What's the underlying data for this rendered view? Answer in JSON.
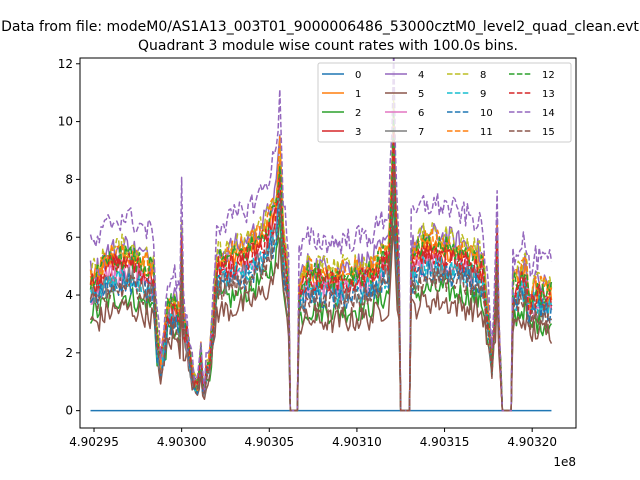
{
  "figure": {
    "suptitle": "Data from file: modeM0/AS1A13_003T01_9000006486_53000cztM0_level2_quad_clean.evt",
    "title": "Quadrant 3 module wise count rates with 100.0s bins.",
    "offset_label": "1e8"
  },
  "chart_data": {
    "type": "line",
    "title": "Quadrant 3 module wise count rates with 100.0s bins.",
    "xlabel": "",
    "ylabel": "",
    "x_scale_note": "x tick values multiplied by 1e8",
    "xlim": [
      490294200,
      490322500
    ],
    "ylim": [
      -0.6,
      12.2
    ],
    "x_start": 490294800,
    "x_end": 490321100,
    "bin_seconds": 100,
    "xticks": [
      490295000,
      490300000,
      490305000,
      490310000,
      490315000,
      490320000
    ],
    "xtick_labels": [
      "4.90295",
      "4.90300",
      "4.90305",
      "4.90310",
      "4.90315",
      "4.90320"
    ],
    "yticks": [
      0,
      2,
      4,
      6,
      8,
      10,
      12
    ],
    "ytick_labels": [
      "0",
      "2",
      "4",
      "6",
      "8",
      "10",
      "12"
    ],
    "grid": false,
    "legend_location": "upper right",
    "legend_columns": 4,
    "envelope_profile": [
      [
        0,
        4.3
      ],
      [
        4,
        4.4
      ],
      [
        10,
        4.9
      ],
      [
        20,
        5.1
      ],
      [
        30,
        4.8
      ],
      [
        36,
        4.6
      ],
      [
        38,
        2.4
      ],
      [
        40,
        1.6
      ],
      [
        42,
        2.3
      ],
      [
        44,
        3.3
      ],
      [
        48,
        3.6
      ],
      [
        51,
        2.9
      ],
      [
        52,
        5.9
      ],
      [
        53,
        3.0
      ],
      [
        55,
        2.6
      ],
      [
        57,
        1.6
      ],
      [
        59,
        1.0
      ],
      [
        61,
        0.8
      ],
      [
        63,
        1.9
      ],
      [
        64,
        0.9
      ],
      [
        65,
        0.6
      ],
      [
        66,
        1.3
      ],
      [
        68,
        1.7
      ],
      [
        70,
        3.0
      ],
      [
        72,
        4.9
      ],
      [
        80,
        5.0
      ],
      [
        90,
        5.3
      ],
      [
        100,
        5.9
      ],
      [
        106,
        6.8
      ],
      [
        108,
        8.4
      ],
      [
        110,
        5.6
      ],
      [
        113,
        4.2
      ],
      [
        114,
        0.0
      ],
      [
        118,
        0.0
      ],
      [
        119,
        4.1
      ],
      [
        124,
        4.5
      ],
      [
        140,
        4.4
      ],
      [
        160,
        4.6
      ],
      [
        170,
        5.2
      ],
      [
        172,
        7.5
      ],
      [
        173,
        9.6
      ],
      [
        174,
        6.8
      ],
      [
        176,
        4.4
      ],
      [
        177,
        0.0
      ],
      [
        182,
        0.0
      ],
      [
        183,
        5.0
      ],
      [
        190,
        5.4
      ],
      [
        200,
        5.4
      ],
      [
        210,
        5.2
      ],
      [
        220,
        5.0
      ],
      [
        224,
        4.7
      ],
      [
        226,
        3.6
      ],
      [
        228,
        2.4
      ],
      [
        229,
        1.6
      ],
      [
        231,
        3.8
      ],
      [
        232,
        5.8
      ],
      [
        233,
        2.8
      ],
      [
        235,
        0.0
      ],
      [
        240,
        0.0
      ],
      [
        241,
        4.1
      ],
      [
        244,
        4.3
      ],
      [
        248,
        4.6
      ],
      [
        251,
        3.5
      ],
      [
        253,
        4.0
      ],
      [
        258,
        3.9
      ],
      [
        263,
        3.9
      ]
    ],
    "series": [
      {
        "name": "0",
        "color": "#1f77b4",
        "style": "solid",
        "scale": 0,
        "constant": 0
      },
      {
        "name": "1",
        "color": "#ff7f0e",
        "style": "solid",
        "scale": 1.05
      },
      {
        "name": "2",
        "color": "#2ca02c",
        "style": "solid",
        "scale": 0.78
      },
      {
        "name": "3",
        "color": "#d62728",
        "style": "solid",
        "scale": 1.0
      },
      {
        "name": "4",
        "color": "#9467bd",
        "style": "solid",
        "scale": 1.12
      },
      {
        "name": "5",
        "color": "#8c564b",
        "style": "solid",
        "scale": 0.7
      },
      {
        "name": "6",
        "color": "#e377c2",
        "style": "solid",
        "scale": 0.95
      },
      {
        "name": "7",
        "color": "#7f7f7f",
        "style": "solid",
        "scale": 0.9
      },
      {
        "name": "8",
        "color": "#bcbd22",
        "style": "dashed",
        "scale": 1.12
      },
      {
        "name": "9",
        "color": "#17becf",
        "style": "dashed",
        "scale": 0.92
      },
      {
        "name": "10",
        "color": "#1f77b4",
        "style": "dashed",
        "scale": 0.88
      },
      {
        "name": "11",
        "color": "#ff7f0e",
        "style": "dashed",
        "scale": 1.08
      },
      {
        "name": "12",
        "color": "#2ca02c",
        "style": "dashed",
        "scale": 1.05
      },
      {
        "name": "13",
        "color": "#d62728",
        "style": "dashed",
        "scale": 1.0
      },
      {
        "name": "14",
        "color": "#9467bd",
        "style": "dashed",
        "scale": 1.32
      },
      {
        "name": "15",
        "color": "#8c564b",
        "style": "dashed",
        "scale": 0.85
      }
    ]
  }
}
